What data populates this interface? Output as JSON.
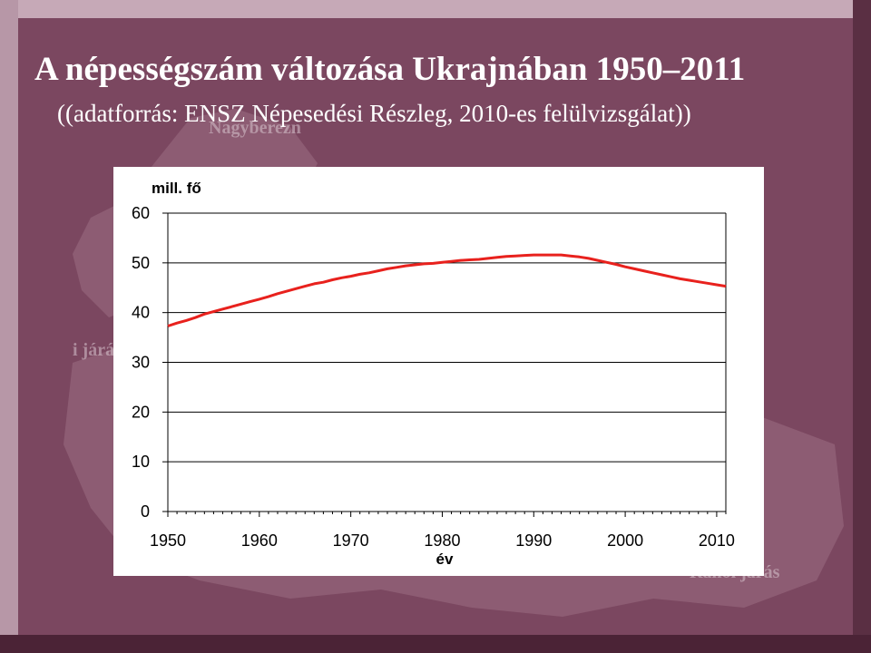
{
  "slide": {
    "title": "A népességszám változása Ukrajnában 1950–2011",
    "subtitle": "((adatforrás: ENSZ Népesedési Részleg, 2010-es felülvizsgálat))"
  },
  "background_labels": [
    "Nagyberezn",
    "i járá",
    "Rahói járás"
  ],
  "colors": {
    "slide_background": "#7b4760",
    "line": "#e8211d",
    "title_text": "#ffffff"
  },
  "chart_data": {
    "type": "line",
    "title": "",
    "xlabel": "év",
    "ylabel": "mill. fő",
    "xlim": [
      1950,
      2011
    ],
    "ylim": [
      0,
      60
    ],
    "x_ticks": [
      "1950",
      "1960",
      "1970",
      "1980",
      "1990",
      "2000",
      "2010"
    ],
    "y_ticks": [
      "0",
      "10",
      "20",
      "30",
      "40",
      "50",
      "60"
    ],
    "grid": "horizontal",
    "series": [
      {
        "x": [
          1950,
          1951,
          1952,
          1953,
          1954,
          1955,
          1956,
          1957,
          1958,
          1959,
          1960,
          1961,
          1962,
          1963,
          1964,
          1965,
          1966,
          1967,
          1968,
          1969,
          1970,
          1971,
          1972,
          1973,
          1974,
          1975,
          1976,
          1977,
          1978,
          1979,
          1980,
          1981,
          1982,
          1983,
          1984,
          1985,
          1986,
          1987,
          1988,
          1989,
          1990,
          1991,
          1992,
          1993,
          1994,
          1995,
          1996,
          1997,
          1998,
          1999,
          2000,
          2001,
          2002,
          2003,
          2004,
          2005,
          2006,
          2007,
          2008,
          2009,
          2010,
          2011
        ],
        "values": [
          37.3,
          37.9,
          38.4,
          39.0,
          39.7,
          40.2,
          40.7,
          41.2,
          41.7,
          42.2,
          42.7,
          43.2,
          43.8,
          44.3,
          44.8,
          45.3,
          45.8,
          46.1,
          46.6,
          47.0,
          47.3,
          47.7,
          48.0,
          48.4,
          48.8,
          49.1,
          49.4,
          49.6,
          49.8,
          49.9,
          50.1,
          50.3,
          50.5,
          50.6,
          50.7,
          50.9,
          51.1,
          51.3,
          51.4,
          51.5,
          51.6,
          51.6,
          51.6,
          51.6,
          51.4,
          51.2,
          50.9,
          50.5,
          50.1,
          49.7,
          49.2,
          48.8,
          48.4,
          48.0,
          47.6,
          47.2,
          46.8,
          46.5,
          46.2,
          45.9,
          45.6,
          45.3
        ]
      }
    ]
  }
}
